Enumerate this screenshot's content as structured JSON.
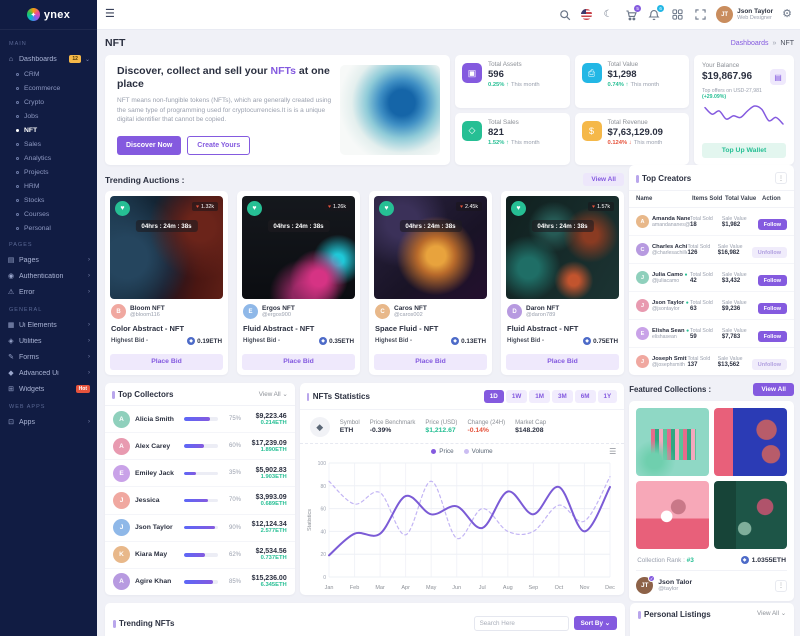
{
  "brand": {
    "name": "ynex",
    "logo_icon": "pinwheel-logo-icon"
  },
  "header": {
    "hamburger_icon": "menu-icon",
    "search_icon": "search-icon",
    "flag_icon": "us-flag-icon",
    "moon_icon": "dark-mode-icon",
    "cart": {
      "icon": "cart-icon",
      "badge": "5",
      "badge_color": "#845adf"
    },
    "notifications": {
      "icon": "bell-icon",
      "badge": "6",
      "badge_color": "#23b7e5"
    },
    "grid_icon": "apps-grid-icon",
    "fullscreen_icon": "fullscreen-icon",
    "settings_icon": "gear-icon",
    "user": {
      "name": "Json Taylor",
      "role": "Web Designer",
      "initials": "JT"
    }
  },
  "sidebar": {
    "sections": [
      {
        "label": "MAIN",
        "items": [
          {
            "label": "Dashboards",
            "icon": "home-icon",
            "glyph": "⌂",
            "badge": "12",
            "badge_style": "yellow",
            "chevron": "⌄",
            "children": [
              "CRM",
              "Ecommerce",
              "Crypto",
              "Jobs",
              "NFT",
              "Sales",
              "Analytics",
              "Projects",
              "HRM",
              "Stocks",
              "Courses",
              "Personal"
            ],
            "active_child": "NFT"
          }
        ]
      },
      {
        "label": "PAGES",
        "items": [
          {
            "label": "Pages",
            "icon": "page-icon",
            "glyph": "▤",
            "chevron": "›"
          },
          {
            "label": "Authentication",
            "icon": "authentication-icon",
            "glyph": "◉",
            "chevron": "›"
          },
          {
            "label": "Error",
            "icon": "error-icon",
            "glyph": "⚠",
            "chevron": "›"
          }
        ]
      },
      {
        "label": "GENERAL",
        "items": [
          {
            "label": "Ui Elements",
            "icon": "ui-elements-icon",
            "glyph": "▦",
            "chevron": "›"
          },
          {
            "label": "Utilities",
            "icon": "utilities-icon",
            "glyph": "◈",
            "chevron": "›"
          },
          {
            "label": "Forms",
            "icon": "forms-icon",
            "glyph": "✎",
            "chevron": "›"
          },
          {
            "label": "Advanced Ui",
            "icon": "advanced-ui-icon",
            "glyph": "◆",
            "chevron": "›"
          },
          {
            "label": "Widgets",
            "icon": "widgets-icon",
            "glyph": "⊞",
            "badge": "Hot",
            "badge_style": "red"
          }
        ]
      },
      {
        "label": "WEB APPS",
        "items": [
          {
            "label": "Apps",
            "icon": "apps-icon",
            "glyph": "⊡",
            "chevron": "›"
          }
        ]
      }
    ]
  },
  "page": {
    "title": "NFT",
    "breadcrumb_parent": "Dashboards",
    "breadcrumb_sep": "»",
    "breadcrumb_current": "NFT"
  },
  "banner": {
    "title_prefix": "Discover, collect and sell your ",
    "title_highlight": "NFTs",
    "title_suffix": " at one place",
    "description": "NFT means non-fungible tokens (NFTs), which are generally created using the same type of programming used for cryptocurrencies.It is is a unique digital identifier that cannot be copied.",
    "primary_button": "Discover Now",
    "secondary_button": "Create Yours"
  },
  "stats": [
    {
      "label": "Total Assets",
      "value": "596",
      "change": "0.25%",
      "direction": "up",
      "period": "This month",
      "icon": "assets-icon",
      "color": "#845adf"
    },
    {
      "label": "Total Value",
      "value": "$1,298",
      "change": "0.74%",
      "direction": "up",
      "period": "This month",
      "icon": "value-icon",
      "color": "#23b7e5"
    },
    {
      "label": "Total Sales",
      "value": "821",
      "change": "1.52%",
      "direction": "up",
      "period": "This month",
      "icon": "sales-icon",
      "color": "#26bf94"
    },
    {
      "label": "Total Revenue",
      "value": "$7,63,129.09",
      "change": "0.124%",
      "direction": "down",
      "period": "This month",
      "icon": "revenue-icon",
      "color": "#f5b849"
    }
  ],
  "balance": {
    "label": "Your Balance",
    "value": "$19,867.96",
    "wallet_icon": "wallet-icon",
    "subtext": "Top offers on USD-27,981 ",
    "subtext_highlight": "(+29.09%)",
    "button": "Top Up Wallet",
    "sparkline": [
      18,
      14,
      16,
      11,
      13,
      12,
      16,
      19,
      17,
      10,
      12,
      8
    ],
    "spark_color": "#845adf"
  },
  "trending_auctions": {
    "title": "Trending Auctions :",
    "view_all": "View All",
    "timer": "04hrs : 24m : 38s",
    "cards": [
      {
        "likes": "1.32k",
        "creator": "Bloom NFT",
        "handle": "@bloom116",
        "title": "Color Abstract - NFT",
        "bid_label": "Highest Bid -",
        "bid": "0.19ETH",
        "button": "Place Bid",
        "art": "art1"
      },
      {
        "likes": "1.26k",
        "creator": "Ergos NFT",
        "handle": "@ergos900",
        "title": "Fluid Abstract - NFT",
        "bid_label": "Highest Bid -",
        "bid": "0.35ETH",
        "button": "Place Bid",
        "art": "art2"
      },
      {
        "likes": "2.45k",
        "creator": "Caros NFT",
        "handle": "@caros002",
        "title": "Space Fluid - NFT",
        "bid_label": "Highest Bid -",
        "bid": "0.13ETH",
        "button": "Place Bid",
        "art": "art3"
      },
      {
        "likes": "1.57k",
        "creator": "Daron NFT",
        "handle": "@daron789",
        "title": "Fluid Abstract - NFT",
        "bid_label": "Highest Bid -",
        "bid": "0.75ETH",
        "button": "Place Bid",
        "art": "art4"
      }
    ]
  },
  "top_creators": {
    "title": "Top Creators",
    "columns": [
      "Name",
      "Items Sold",
      "Total Value",
      "Action"
    ],
    "sold_caption": "Total Sold",
    "value_caption": "Sale Value",
    "rows": [
      {
        "name": "Amanda Nanes",
        "handle": "amandananes@",
        "sold": "18",
        "value": "$1,982",
        "action": "Follow",
        "verified": true
      },
      {
        "name": "Charles Achilles",
        "handle": "@charlesachilles",
        "sold": "126",
        "value": "$16,982",
        "action": "Unfollow",
        "verified": true
      },
      {
        "name": "Julia Camo",
        "handle": "@juliacamo",
        "sold": "42",
        "value": "$3,432",
        "action": "Follow",
        "verified": true
      },
      {
        "name": "Json Taylor",
        "handle": "@jsontaylor",
        "sold": "63",
        "value": "$9,236",
        "action": "Follow",
        "verified": true
      },
      {
        "name": "Elisha Sean",
        "handle": "elishasean",
        "sold": "59",
        "value": "$7,783",
        "action": "Follow",
        "verified": true
      },
      {
        "name": "Joseph Smith",
        "handle": "@josephsmith",
        "sold": "137",
        "value": "$13,562",
        "action": "Unfollow",
        "verified": true
      }
    ]
  },
  "top_collectors": {
    "title": "Top Collectors",
    "view_all": "View All ⌄",
    "rows": [
      {
        "name": "Alicia Smith",
        "percent": 75,
        "amount": "$9,223.46",
        "eth": "0.214ETH"
      },
      {
        "name": "Alex Carey",
        "percent": 60,
        "amount": "$17,239.09",
        "eth": "1.890ETH"
      },
      {
        "name": "Emiley Jack",
        "percent": 35,
        "amount": "$5,902.83",
        "eth": "1.903ETH"
      },
      {
        "name": "Jessica",
        "percent": 70,
        "amount": "$3,993.09",
        "eth": "0.689ETH"
      },
      {
        "name": "Json Taylor",
        "percent": 90,
        "amount": "$12,124.34",
        "eth": "2.577ETH"
      },
      {
        "name": "Kiara May",
        "percent": 62,
        "amount": "$2,534.56",
        "eth": "0.737ETH"
      },
      {
        "name": "Agire Khan",
        "percent": 85,
        "amount": "$15,236.00",
        "eth": "6.345ETH"
      }
    ]
  },
  "nft_statistics": {
    "title": "NFTs Statistics",
    "ranges": [
      "1D",
      "1W",
      "1M",
      "3M",
      "6M",
      "1Y"
    ],
    "active_range": "1D",
    "eth_icon": "ethereum-icon",
    "metrics": [
      {
        "label": "Symbol",
        "value": "ETH",
        "tone": "plain"
      },
      {
        "label": "Price Benchmark",
        "value": "-0.39%",
        "tone": "plain"
      },
      {
        "label": "Price (USD)",
        "value": "$1,212.67",
        "tone": "green"
      },
      {
        "label": "Change (24H)",
        "value": "-0.14%",
        "tone": "red"
      },
      {
        "label": "Market Cap",
        "value": "$148.208",
        "tone": "plain"
      }
    ]
  },
  "chart_data": {
    "type": "line",
    "x": [
      "Jan",
      "Feb",
      "Mar",
      "Apr",
      "May",
      "Jun",
      "Jul",
      "Aug",
      "Sep",
      "Oct",
      "Nov",
      "Dec"
    ],
    "series": [
      {
        "name": "Price",
        "style": "solid",
        "color": "#7b5bd6",
        "values": [
          19,
          38,
          38,
          71,
          55,
          62,
          43,
          75,
          55,
          79,
          40,
          79
        ]
      },
      {
        "name": "Volume",
        "style": "dashed",
        "color": "#c3b5f4",
        "values": [
          84,
          64,
          74,
          37,
          84,
          34,
          60,
          40,
          40,
          63,
          49,
          88
        ]
      }
    ],
    "ylim": [
      0,
      100
    ],
    "yticks": [
      0,
      20,
      40,
      60,
      80,
      100
    ],
    "ylabel": "Statistics",
    "grid": true,
    "legend_position": "top"
  },
  "featured_collections": {
    "title": "Featured Collections :",
    "view_all": "View All",
    "rank_label": "Collection Rank :",
    "rank": "#3",
    "eth": "1.0355ETH",
    "owner": {
      "name": "Json Talor",
      "handle": "@taylor",
      "initials": "JT"
    }
  },
  "bottom": {
    "trending_nfts": {
      "title": "Trending NFTs",
      "search_placeholder": "Search Here",
      "sort_button": "Sort By ⌄"
    },
    "personal_listings": {
      "title": "Personal Listings",
      "view_all": "View All ⌄"
    }
  }
}
